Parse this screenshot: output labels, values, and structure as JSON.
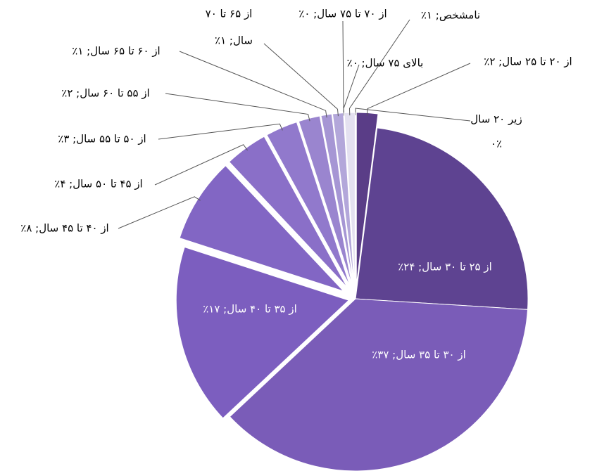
{
  "chart_data": {
    "type": "pie",
    "labels": [
      [
        "زیر ۲۰ سال",
        "۰٪"
      ],
      "از ۲۰ تا ۲۵ سال; ۲٪",
      "از ۲۵ تا ۳۰ سال; ۲۴٪",
      "از ۳۰ تا ۳۵ سال; ۳۷٪",
      "از ۳۵ تا ۴۰ سال; ۱۷٪",
      "از ۴۰ تا ۴۵ سال; ۸٪",
      "از ۴۵ تا ۵۰ سال; ۴٪",
      "از ۵۰ تا ۵۵ سال; ۳٪",
      "از ۵۵ تا ۶۰ سال; ۲٪",
      "از ۶۰ تا ۶۵ سال; ۱٪",
      [
        "از ۶۵ تا ۷۰",
        "سال; ۱٪"
      ],
      "از ۷۰ تا ۷۵ سال; ۰٪",
      "بالای ۷۵ سال; ۰٪",
      "نامشخص; ۱٪"
    ],
    "values": [
      0,
      2,
      24,
      37,
      17,
      8,
      4,
      3,
      2,
      1,
      1,
      0,
      0,
      1
    ],
    "colors": [
      "#4a2f73",
      "#5a3d87",
      "#5e4391",
      "#7a5cb8",
      "#7c5ebf",
      "#8266c4",
      "#8a6fc8",
      "#9179cc",
      "#9a85cf",
      "#a696d4",
      "#b3a7da",
      "#c4bce2",
      "#d6d1ea",
      "#e4e1f0"
    ]
  }
}
